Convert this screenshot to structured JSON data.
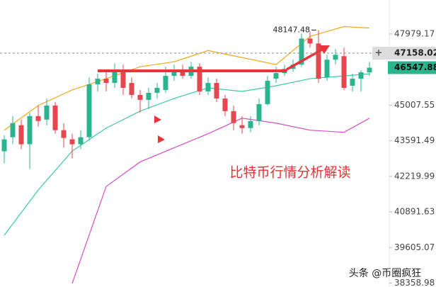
{
  "chart_data": {
    "type": "candlestick",
    "categories": [
      null,
      null,
      null,
      null,
      null,
      null,
      null,
      null,
      null,
      null,
      null,
      null,
      null,
      null,
      null,
      null,
      null,
      null,
      null,
      null,
      null,
      null,
      null,
      null,
      null,
      null,
      null,
      null,
      null,
      null,
      null,
      null,
      null,
      null,
      null,
      null,
      null,
      null,
      null,
      null,
      null,
      null,
      null,
      null
    ],
    "open": [
      43180,
      43730,
      44203,
      43455,
      44568,
      44427,
      44993,
      44007,
      43647,
      43455,
      43730,
      45856,
      46089,
      45914,
      46440,
      45914,
      45422,
      45221,
      45508,
      45625,
      46205,
      46440,
      46205,
      46587,
      45566,
      45914,
      45278,
      44766,
      44203,
      44091,
      44371,
      45050,
      46089,
      46322,
      46499,
      46675,
      47782,
      47571,
      46147,
      46882,
      47031,
      45798,
      46089,
      46352
    ],
    "high": [
      43812,
      44568,
      44427,
      44709,
      44993,
      45278,
      45135,
      44287,
      43868,
      44007,
      46147,
      46293,
      46440,
      46734,
      46675,
      46147,
      45625,
      45711,
      45914,
      46587,
      46675,
      46675,
      46793,
      46734,
      46147,
      46089,
      45422,
      44993,
      44568,
      44568,
      45278,
      46205,
      46587,
      46675,
      46882,
      47994,
      48085,
      48147.48,
      47090,
      47330,
      47390,
      46293,
      46440,
      46793
    ],
    "low": [
      42718,
      43455,
      43262,
      42502,
      44147,
      44203,
      43868,
      43317,
      42907,
      43262,
      43592,
      45566,
      45566,
      45711,
      45422,
      45278,
      44709,
      44851,
      45278,
      45508,
      46001,
      46089,
      46089,
      45422,
      45422,
      45135,
      44568,
      44007,
      43868,
      43924,
      44203,
      44993,
      45914,
      46205,
      46381,
      46587,
      47390,
      45914,
      46001,
      46675,
      45625,
      45566,
      45566,
      46205
    ],
    "close": [
      43647,
      44287,
      43455,
      44568,
      44371,
      44993,
      44007,
      43702,
      43455,
      43730,
      45856,
      46089,
      45914,
      46440,
      45711,
      45422,
      45221,
      45508,
      45711,
      46205,
      46440,
      46205,
      46587,
      45566,
      45914,
      45278,
      44766,
      44287,
      44091,
      44371,
      45050,
      46001,
      46322,
      46499,
      46675,
      47782,
      47571,
      46089,
      46882,
      47090,
      45711,
      46089,
      46352,
      46547.88
    ],
    "up_color": "#2bb58f",
    "down_color": "#e5474f",
    "overlays": {
      "x": [
        0,
        4,
        8,
        12,
        16,
        20,
        24,
        28,
        32,
        36,
        40,
        43
      ],
      "series": [
        {
          "color": "#f0a81e",
          "values": [
            44007,
            44993,
            45625,
            46089,
            46587,
            46793,
            47270,
            46971,
            46675,
            47873,
            48296,
            48235
          ]
        },
        {
          "color": "#3cc9a4",
          "values": [
            40045,
            41706,
            43190,
            44091,
            44766,
            45278,
            45711,
            45566,
            45798,
            46089,
            46205,
            46293
          ]
        },
        {
          "color": "#d64bc8",
          "values": [
            null,
            null,
            38350,
            41837,
            42772,
            43317,
            43868,
            44483,
            44287,
            44007,
            43924,
            44483
          ]
        }
      ]
    },
    "ylim": [
      38228,
      49463
    ],
    "log_scale": true,
    "grid": false,
    "yticks": [
      47979.17,
      45007.55,
      43591.49,
      42219.99,
      40891.63,
      39605.07,
      38358.98
    ],
    "crosshair_price": 47158.02,
    "annotation": "比特币行情分析解读",
    "watermark": "头条 @币圈疯狂"
  }
}
